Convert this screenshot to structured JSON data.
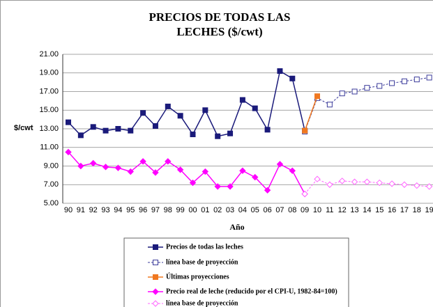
{
  "chart_data": {
    "type": "line",
    "title": [
      "PRECIOS DE TODAS LAS",
      "LECHES  ($/cwt)"
    ],
    "y_label": "$/cwt",
    "x_label": "Año",
    "categories": [
      "90",
      "91",
      "92",
      "93",
      "94",
      "95",
      "96",
      "97",
      "98",
      "99",
      "00",
      "01",
      "02",
      "03",
      "04",
      "05",
      "06",
      "07",
      "08",
      "09",
      "10",
      "11",
      "12",
      "13",
      "14",
      "15",
      "16",
      "17",
      "18",
      "19"
    ],
    "ylim": [
      5,
      21
    ],
    "yticks": [
      {
        "value": 5,
        "label": "5.00"
      },
      {
        "value": 7,
        "label": "7.00"
      },
      {
        "value": 9,
        "label": "9.00"
      },
      {
        "value": 11,
        "label": "11.00"
      },
      {
        "value": 13,
        "label": "13.00"
      },
      {
        "value": 15,
        "label": "15.00"
      },
      {
        "value": 17,
        "label": "17.00"
      },
      {
        "value": 19,
        "label": "19.00"
      },
      {
        "value": 21,
        "label": "21.00"
      }
    ],
    "grid": true,
    "series": [
      {
        "name": "Precios de todas las leches",
        "color": "#1a1a7a",
        "marker": "square",
        "filled": true,
        "dashed": false,
        "values": [
          13.7,
          12.3,
          13.2,
          12.8,
          13.0,
          12.8,
          14.7,
          13.3,
          15.4,
          14.4,
          12.4,
          15.0,
          12.2,
          12.5,
          16.1,
          15.2,
          12.9,
          19.2,
          18.4,
          12.8,
          null,
          null,
          null,
          null,
          null,
          null,
          null,
          null,
          null,
          null
        ]
      },
      {
        "name": "línea base de proyección",
        "color": "#3a3a9a",
        "marker": "square",
        "filled": false,
        "dashed": true,
        "values": [
          null,
          null,
          null,
          null,
          null,
          null,
          null,
          null,
          null,
          null,
          null,
          null,
          null,
          null,
          null,
          null,
          null,
          null,
          null,
          12.7,
          16.3,
          15.6,
          16.8,
          17.0,
          17.4,
          17.6,
          17.9,
          18.1,
          18.3,
          18.5
        ]
      },
      {
        "name": "Últimas proyecciones",
        "color": "#f07820",
        "marker": "square",
        "filled": true,
        "dashed": false,
        "values": [
          null,
          null,
          null,
          null,
          null,
          null,
          null,
          null,
          null,
          null,
          null,
          null,
          null,
          null,
          null,
          null,
          null,
          null,
          null,
          12.8,
          16.5,
          null,
          null,
          null,
          null,
          null,
          null,
          null,
          null,
          null
        ]
      },
      {
        "name": "Precio real de leche (reducido por el CPI-U, 1982-84=100)",
        "color": "#ff00ff",
        "marker": "diamond",
        "filled": true,
        "dashed": false,
        "values": [
          10.5,
          9.0,
          9.3,
          8.9,
          8.8,
          8.4,
          9.5,
          8.3,
          9.5,
          8.6,
          7.2,
          8.4,
          6.8,
          6.8,
          8.5,
          7.8,
          6.4,
          9.2,
          8.5,
          6.0,
          null,
          null,
          null,
          null,
          null,
          null,
          null,
          null,
          null,
          null
        ]
      },
      {
        "name": "línea base de proyección",
        "color": "#ff66ff",
        "marker": "diamond",
        "filled": false,
        "dashed": true,
        "values": [
          null,
          null,
          null,
          null,
          null,
          null,
          null,
          null,
          null,
          null,
          null,
          null,
          null,
          null,
          null,
          null,
          null,
          null,
          null,
          6.0,
          7.6,
          7.0,
          7.4,
          7.3,
          7.3,
          7.2,
          7.1,
          7.0,
          6.9,
          6.8
        ]
      }
    ]
  }
}
